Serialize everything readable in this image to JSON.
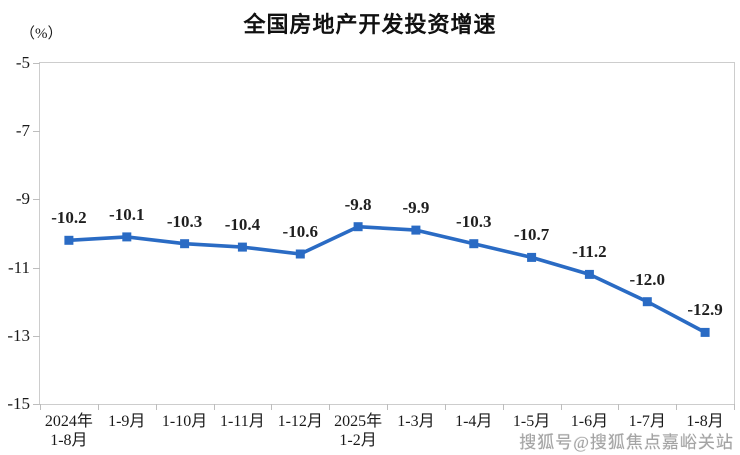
{
  "watermark": "搜狐号@搜狐焦点嘉峪关站",
  "chart_data": {
    "type": "line",
    "title": "全国房地产开发投资增速",
    "unit_label": "（%）",
    "categories": [
      [
        "2024年",
        "1-8月"
      ],
      [
        "1-9月"
      ],
      [
        "1-10月"
      ],
      [
        "1-11月"
      ],
      [
        "1-12月"
      ],
      [
        "2025年",
        "1-2月"
      ],
      [
        "1-3月"
      ],
      [
        "1-4月"
      ],
      [
        "1-5月"
      ],
      [
        "1-6月"
      ],
      [
        "1-7月"
      ],
      [
        "1-8月"
      ]
    ],
    "values": [
      -10.2,
      -10.1,
      -10.3,
      -10.4,
      -10.6,
      -9.8,
      -9.9,
      -10.3,
      -10.7,
      -11.2,
      -12.0,
      -12.9
    ],
    "data_labels": [
      "-10.2",
      "-10.1",
      "-10.3",
      "-10.4",
      "-10.6",
      "-9.8",
      "-9.9",
      "-10.3",
      "-10.7",
      "-11.2",
      "-12.0",
      "-12.9"
    ],
    "ylim": [
      -15,
      -5
    ],
    "yticks": [
      -5,
      -7,
      -9,
      -11,
      -13,
      -15
    ],
    "ytick_labels": [
      "-5",
      "-7",
      "-9",
      "-11",
      "-13",
      "-15"
    ],
    "xlabel": "",
    "ylabel": "（%）",
    "grid": false,
    "legend_position": "none",
    "line_color": "#2A6BC4",
    "marker": "square",
    "marker_color": "#2A6BC4"
  }
}
